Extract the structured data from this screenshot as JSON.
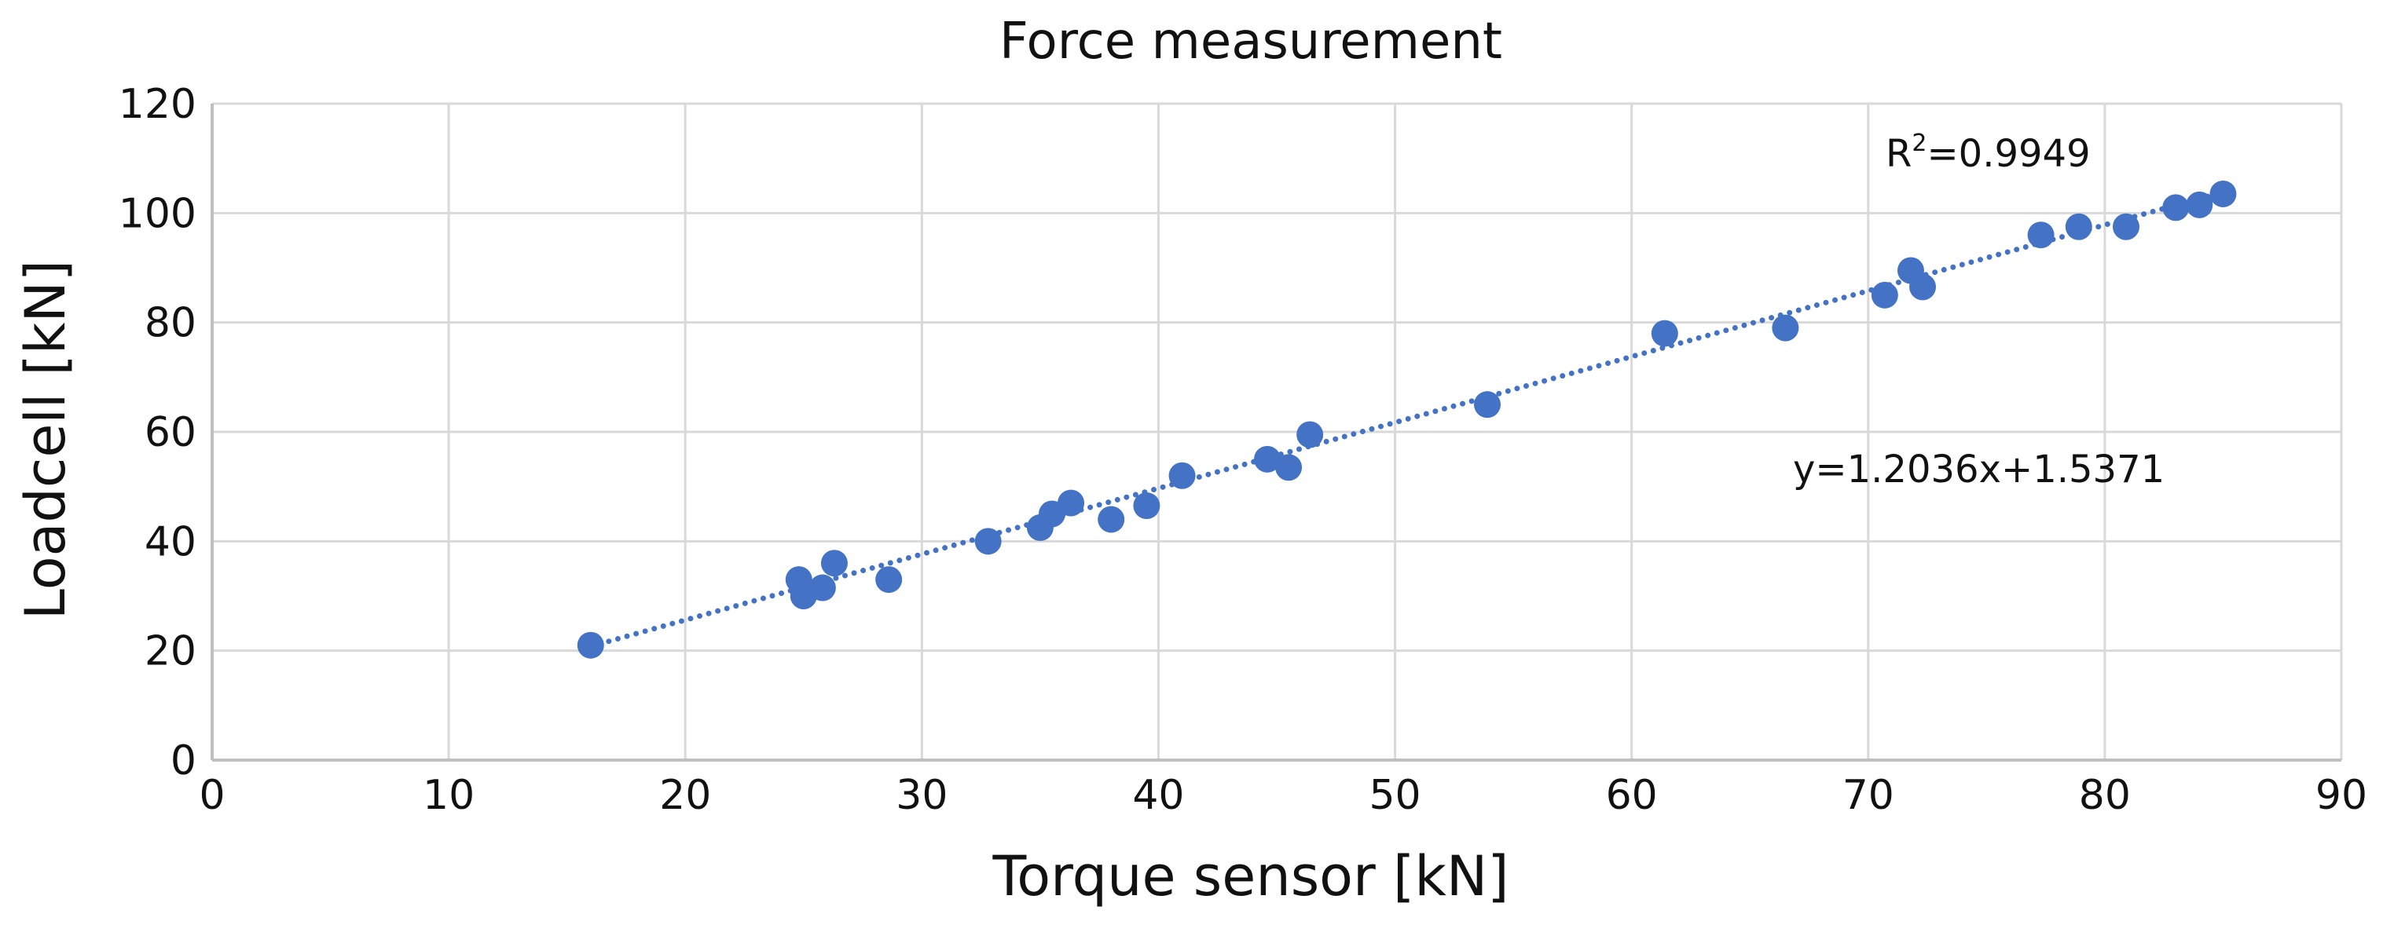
{
  "chart_data": {
    "type": "scatter",
    "title": "Force measurement",
    "xlabel": "Torque sensor [kN]",
    "ylabel": "Loadcell [kN]",
    "xlim": [
      0,
      90
    ],
    "ylim": [
      0,
      120
    ],
    "xticks": [
      0,
      10,
      20,
      30,
      40,
      50,
      60,
      70,
      80,
      90
    ],
    "yticks": [
      0,
      20,
      40,
      60,
      80,
      100,
      120
    ],
    "xtick_labels": [
      "0",
      "10",
      "20",
      "30",
      "40",
      "50",
      "60",
      "70",
      "80",
      "90"
    ],
    "ytick_labels": [
      "0",
      "20",
      "40",
      "60",
      "80",
      "100",
      "120"
    ],
    "grid": true,
    "legend": "none",
    "series_color": "#4472C4",
    "points": [
      {
        "x": 16.0,
        "y": 21.0
      },
      {
        "x": 24.8,
        "y": 33.0
      },
      {
        "x": 25.0,
        "y": 30.0
      },
      {
        "x": 25.8,
        "y": 31.5
      },
      {
        "x": 26.3,
        "y": 36.0
      },
      {
        "x": 28.6,
        "y": 33.0
      },
      {
        "x": 32.8,
        "y": 40.0
      },
      {
        "x": 35.0,
        "y": 42.5
      },
      {
        "x": 35.5,
        "y": 45.0
      },
      {
        "x": 36.3,
        "y": 47.0
      },
      {
        "x": 38.0,
        "y": 44.0
      },
      {
        "x": 39.5,
        "y": 46.5
      },
      {
        "x": 41.0,
        "y": 52.0
      },
      {
        "x": 44.6,
        "y": 55.0
      },
      {
        "x": 45.5,
        "y": 53.5
      },
      {
        "x": 46.4,
        "y": 59.5
      },
      {
        "x": 53.9,
        "y": 65.0
      },
      {
        "x": 61.4,
        "y": 78.0
      },
      {
        "x": 66.5,
        "y": 79.0
      },
      {
        "x": 70.7,
        "y": 85.0
      },
      {
        "x": 71.8,
        "y": 89.5
      },
      {
        "x": 72.3,
        "y": 86.5
      },
      {
        "x": 77.3,
        "y": 96.0
      },
      {
        "x": 78.9,
        "y": 97.5
      },
      {
        "x": 80.9,
        "y": 97.5
      },
      {
        "x": 83.0,
        "y": 101.0
      },
      {
        "x": 84.0,
        "y": 101.5
      },
      {
        "x": 85.0,
        "y": 103.5
      }
    ],
    "trendline": {
      "type": "linear",
      "slope": 1.2036,
      "intercept": 1.5371,
      "x_start": 16.0,
      "x_end": 85.0,
      "style": "dotted"
    },
    "annotations": {
      "r2_prefix": "R",
      "r2_sup": "2",
      "r2_value": "=0.9949",
      "equation": "y=1.2036x+1.5371"
    }
  }
}
